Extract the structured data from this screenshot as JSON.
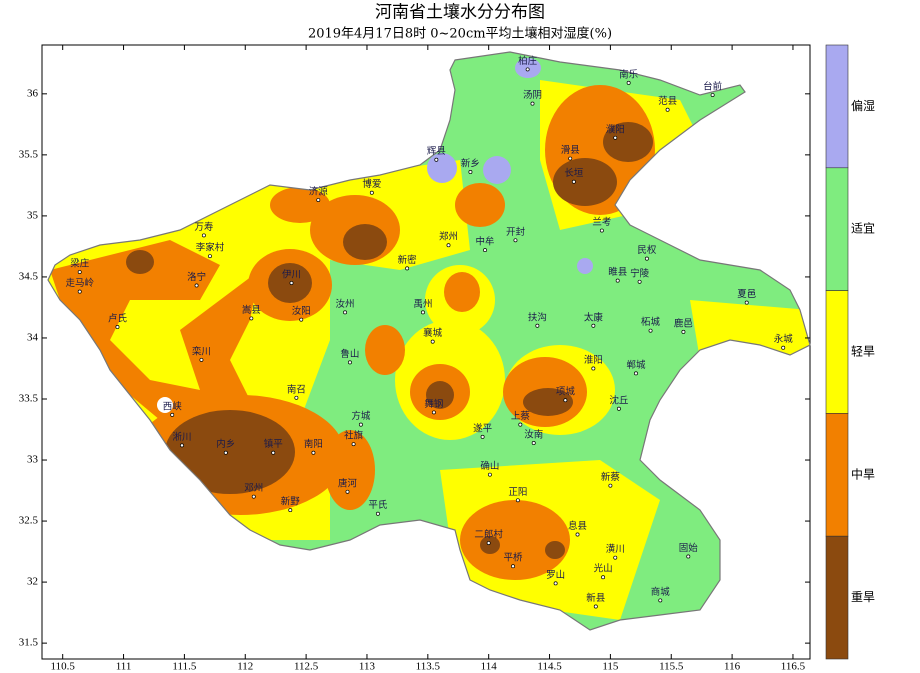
{
  "header": {
    "title": "河南省土壤水分分布图",
    "subtitle": "2019年4月17日8时 0~20cm平均土壤相对湿度(%)"
  },
  "map": {
    "xlim": [
      110.33,
      116.64
    ],
    "ylim": [
      31.37,
      36.4
    ],
    "xticks": [
      110.5,
      111,
      111.5,
      112,
      112.5,
      113,
      113.5,
      114,
      114.5,
      115,
      115.5,
      116,
      116.5
    ],
    "yticks": [
      31.5,
      32,
      32.5,
      33,
      33.5,
      34,
      34.5,
      35,
      35.5,
      36
    ],
    "legend": [
      {
        "label": "偏湿",
        "color": "#a9a9f0"
      },
      {
        "label": "适宜",
        "color": "#7fec7f"
      },
      {
        "label": "轻旱",
        "color": "#ffff00"
      },
      {
        "label": "中旱",
        "color": "#f28000"
      },
      {
        "label": "重旱",
        "color": "#8b4a0f"
      }
    ],
    "cities": [
      {
        "name": "柏庄",
        "lon": 114.32,
        "lat": 36.2
      },
      {
        "name": "南乐",
        "lon": 115.15,
        "lat": 36.09
      },
      {
        "name": "台前",
        "lon": 115.84,
        "lat": 35.99
      },
      {
        "name": "范县",
        "lon": 115.47,
        "lat": 35.87
      },
      {
        "name": "汤阴",
        "lon": 114.36,
        "lat": 35.92
      },
      {
        "name": "濮阳",
        "lon": 115.04,
        "lat": 35.64
      },
      {
        "name": "滑县",
        "lon": 114.67,
        "lat": 35.47
      },
      {
        "name": "长垣",
        "lon": 114.7,
        "lat": 35.28
      },
      {
        "name": "辉县",
        "lon": 113.57,
        "lat": 35.46
      },
      {
        "name": "新乡",
        "lon": 113.85,
        "lat": 35.36
      },
      {
        "name": "博爱",
        "lon": 113.04,
        "lat": 35.19
      },
      {
        "name": "济源",
        "lon": 112.6,
        "lat": 35.13
      },
      {
        "name": "郑州",
        "lon": 113.67,
        "lat": 34.76
      },
      {
        "name": "中牟",
        "lon": 113.97,
        "lat": 34.72
      },
      {
        "name": "开封",
        "lon": 114.22,
        "lat": 34.8
      },
      {
        "name": "兰考",
        "lon": 114.93,
        "lat": 34.88
      },
      {
        "name": "民权",
        "lon": 115.3,
        "lat": 34.65
      },
      {
        "name": "睢县",
        "lon": 115.06,
        "lat": 34.47
      },
      {
        "name": "宁陵",
        "lon": 115.24,
        "lat": 34.46
      },
      {
        "name": "夏邑",
        "lon": 116.12,
        "lat": 34.29
      },
      {
        "name": "永城",
        "lon": 116.42,
        "lat": 33.92
      },
      {
        "name": "柘城",
        "lon": 115.33,
        "lat": 34.06
      },
      {
        "name": "鹿邑",
        "lon": 115.6,
        "lat": 34.05
      },
      {
        "name": "太康",
        "lon": 114.86,
        "lat": 34.1
      },
      {
        "name": "扶沟",
        "lon": 114.4,
        "lat": 34.1
      },
      {
        "name": "淮阳",
        "lon": 114.86,
        "lat": 33.75
      },
      {
        "name": "郸城",
        "lon": 115.21,
        "lat": 33.71
      },
      {
        "name": "项城",
        "lon": 114.63,
        "lat": 33.49
      },
      {
        "name": "沈丘",
        "lon": 115.07,
        "lat": 33.42
      },
      {
        "name": "梁庄",
        "lon": 110.64,
        "lat": 34.54
      },
      {
        "name": "走马岭",
        "lon": 110.64,
        "lat": 34.38
      },
      {
        "name": "万寿",
        "lon": 111.66,
        "lat": 34.84
      },
      {
        "name": "李家村",
        "lon": 111.71,
        "lat": 34.67
      },
      {
        "name": "卢氏",
        "lon": 110.95,
        "lat": 34.09
      },
      {
        "name": "洛宁",
        "lon": 111.6,
        "lat": 34.43
      },
      {
        "name": "栾川",
        "lon": 111.64,
        "lat": 33.82
      },
      {
        "name": "嵩县",
        "lon": 112.05,
        "lat": 34.16
      },
      {
        "name": "伊川",
        "lon": 112.38,
        "lat": 34.45
      },
      {
        "name": "汝阳",
        "lon": 112.46,
        "lat": 34.15
      },
      {
        "name": "新密",
        "lon": 113.33,
        "lat": 34.57
      },
      {
        "name": "汝州",
        "lon": 112.82,
        "lat": 34.21
      },
      {
        "name": "禹州",
        "lon": 113.46,
        "lat": 34.21
      },
      {
        "name": "襄城",
        "lon": 113.54,
        "lat": 33.97
      },
      {
        "name": "鲁山",
        "lon": 112.86,
        "lat": 33.8
      },
      {
        "name": "南召",
        "lon": 112.42,
        "lat": 33.51
      },
      {
        "name": "西峡",
        "lon": 111.4,
        "lat": 33.37
      },
      {
        "name": "淅川",
        "lon": 111.48,
        "lat": 33.12
      },
      {
        "name": "内乡",
        "lon": 111.84,
        "lat": 33.06
      },
      {
        "name": "镇平",
        "lon": 112.23,
        "lat": 33.06
      },
      {
        "name": "南阳",
        "lon": 112.56,
        "lat": 33.06
      },
      {
        "name": "方城",
        "lon": 112.95,
        "lat": 33.29
      },
      {
        "name": "社旗",
        "lon": 112.89,
        "lat": 33.13
      },
      {
        "name": "唐河",
        "lon": 112.84,
        "lat": 32.74
      },
      {
        "name": "新野",
        "lon": 112.37,
        "lat": 32.59
      },
      {
        "name": "邓州",
        "lon": 112.07,
        "lat": 32.7
      },
      {
        "name": "平氏",
        "lon": 113.09,
        "lat": 32.56
      },
      {
        "name": "舞钢",
        "lon": 113.55,
        "lat": 33.39
      },
      {
        "name": "遂平",
        "lon": 113.95,
        "lat": 33.19
      },
      {
        "name": "上蔡",
        "lon": 114.26,
        "lat": 33.29
      },
      {
        "name": "汝南",
        "lon": 114.37,
        "lat": 33.14
      },
      {
        "name": "确山",
        "lon": 114.01,
        "lat": 32.88
      },
      {
        "name": "正阳",
        "lon": 114.24,
        "lat": 32.67
      },
      {
        "name": "新蔡",
        "lon": 115.0,
        "lat": 32.79
      },
      {
        "name": "息县",
        "lon": 114.73,
        "lat": 32.39
      },
      {
        "name": "二郎村",
        "lon": 114.0,
        "lat": 32.32
      },
      {
        "name": "罗山",
        "lon": 114.55,
        "lat": 31.99
      },
      {
        "name": "平桥",
        "lon": 114.2,
        "lat": 32.13
      },
      {
        "name": "潢川",
        "lon": 115.04,
        "lat": 32.2
      },
      {
        "name": "固始",
        "lon": 115.64,
        "lat": 32.21
      },
      {
        "name": "光山",
        "lon": 114.94,
        "lat": 32.04
      },
      {
        "name": "商城",
        "lon": 115.41,
        "lat": 31.85
      },
      {
        "name": "新县",
        "lon": 114.88,
        "lat": 31.8
      }
    ]
  }
}
